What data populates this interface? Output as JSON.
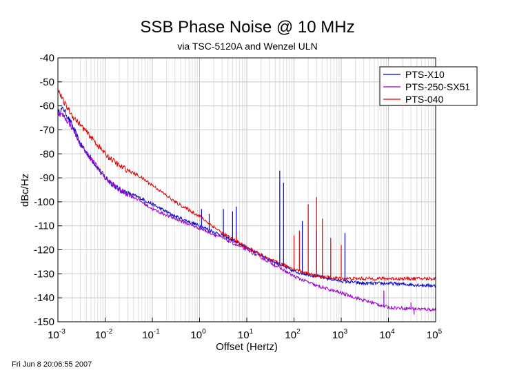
{
  "chart_data": {
    "type": "line",
    "title": "SSB Phase Noise @ 10 MHz",
    "subtitle": "via TSC-5120A and Wenzel ULN",
    "xlabel": "Offset (Hertz)",
    "ylabel": "dBc/Hz",
    "xscale": "log",
    "xlim": [
      0.001,
      100000
    ],
    "ylim": [
      -150,
      -40
    ],
    "grid": true,
    "legend_position": "top-right",
    "x_tick_labels": [
      {
        "base": "10",
        "exp": "-3"
      },
      {
        "base": "10",
        "exp": "-2"
      },
      {
        "base": "10",
        "exp": "-1"
      },
      {
        "base": "10",
        "exp": "0"
      },
      {
        "base": "10",
        "exp": "1"
      },
      {
        "base": "10",
        "exp": "2"
      },
      {
        "base": "10",
        "exp": "3"
      },
      {
        "base": "10",
        "exp": "4"
      },
      {
        "base": "10",
        "exp": "5"
      }
    ],
    "y_tick_labels": [
      "-40",
      "-50",
      "-60",
      "-70",
      "-80",
      "-90",
      "-100",
      "-110",
      "-120",
      "-130",
      "-140",
      "-150"
    ],
    "series": [
      {
        "name": "PTS-X10",
        "color": "#0000cc",
        "points": [
          [
            0.001,
            -63
          ],
          [
            0.0013,
            -61
          ],
          [
            0.002,
            -68
          ],
          [
            0.003,
            -76
          ],
          [
            0.005,
            -82
          ],
          [
            0.01,
            -90
          ],
          [
            0.02,
            -95
          ],
          [
            0.05,
            -98
          ],
          [
            0.1,
            -101
          ],
          [
            0.3,
            -106
          ],
          [
            1,
            -110
          ],
          [
            3,
            -114
          ],
          [
            10,
            -119
          ],
          [
            30,
            -124
          ],
          [
            100,
            -129
          ],
          [
            300,
            -131
          ],
          [
            1000,
            -133
          ],
          [
            3000,
            -134
          ],
          [
            10000,
            -134
          ],
          [
            100000,
            -135
          ]
        ],
        "spurs": [
          [
            1.1,
            -103
          ],
          [
            1.6,
            -105
          ],
          [
            3.2,
            -103
          ],
          [
            5.0,
            -104
          ],
          [
            6.0,
            -102
          ],
          [
            50,
            -87
          ],
          [
            60,
            -92
          ],
          [
            150,
            -108
          ],
          [
            300,
            -112
          ],
          [
            1200,
            -113
          ]
        ]
      },
      {
        "name": "PTS-250-SX51",
        "color": "#9900cc",
        "points": [
          [
            0.001,
            -63
          ],
          [
            0.0013,
            -64
          ],
          [
            0.002,
            -69
          ],
          [
            0.003,
            -76
          ],
          [
            0.005,
            -82
          ],
          [
            0.01,
            -90
          ],
          [
            0.02,
            -95
          ],
          [
            0.05,
            -99
          ],
          [
            0.1,
            -103
          ],
          [
            0.3,
            -107
          ],
          [
            1,
            -111
          ],
          [
            3,
            -115
          ],
          [
            10,
            -120
          ],
          [
            30,
            -125
          ],
          [
            100,
            -131
          ],
          [
            300,
            -135
          ],
          [
            1000,
            -138
          ],
          [
            3000,
            -141
          ],
          [
            10000,
            -144
          ],
          [
            100000,
            -145
          ]
        ],
        "spurs": [
          [
            8000,
            -137
          ],
          [
            30000,
            -142
          ],
          [
            35000,
            -147
          ]
        ]
      },
      {
        "name": "PTS-040",
        "color": "#dd0000",
        "points": [
          [
            0.001,
            -53
          ],
          [
            0.0013,
            -58
          ],
          [
            0.002,
            -64
          ],
          [
            0.003,
            -68
          ],
          [
            0.005,
            -73
          ],
          [
            0.01,
            -80
          ],
          [
            0.02,
            -85
          ],
          [
            0.05,
            -89
          ],
          [
            0.1,
            -93
          ],
          [
            0.3,
            -100
          ],
          [
            1,
            -106
          ],
          [
            3,
            -113
          ],
          [
            10,
            -119
          ],
          [
            30,
            -124
          ],
          [
            100,
            -128
          ],
          [
            300,
            -131
          ],
          [
            1000,
            -132
          ],
          [
            3000,
            -132
          ],
          [
            10000,
            -132
          ],
          [
            100000,
            -132
          ]
        ],
        "spurs": [
          [
            6,
            -114
          ],
          [
            100,
            -114
          ],
          [
            130,
            -112
          ],
          [
            200,
            -101
          ],
          [
            300,
            -98
          ],
          [
            400,
            -107
          ],
          [
            600,
            -115
          ],
          [
            1000,
            -118
          ]
        ]
      }
    ],
    "timestamp": "Fri Jun  8 20:06:55 2007"
  }
}
